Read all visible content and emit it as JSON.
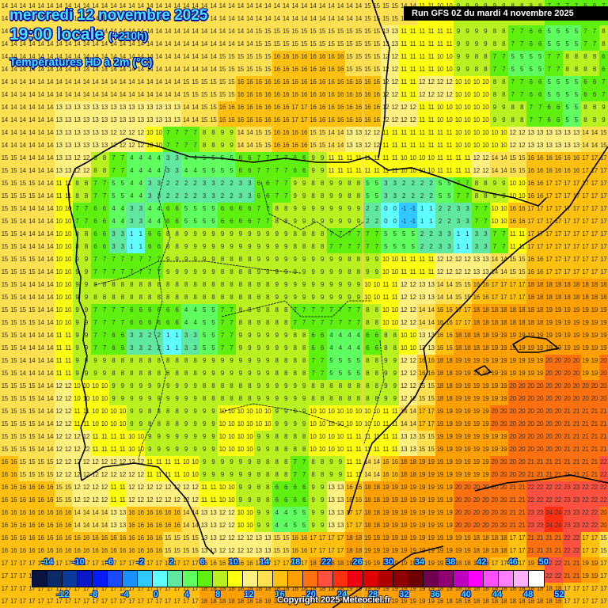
{
  "header": {
    "date": "mercredi 12 novembre 2025",
    "time": "19:00 locale",
    "lead": "(+210h)",
    "variable": "Températures HD à 2m (°C)",
    "run": "Run GFS 0Z du mardi 4 novembre 2025"
  },
  "footer": {
    "copyright": "Copyright 2025 Meteociel.fr"
  },
  "legend": {
    "colors": [
      "#0a1440",
      "#0a2a6a",
      "#0a3a9a",
      "#0a18c8",
      "#0a1aff",
      "#1a4aff",
      "#1a90ff",
      "#30c8ff",
      "#60ffff",
      "#60e8a0",
      "#60ff60",
      "#60f010",
      "#b8f020",
      "#ffff10",
      "#fff080",
      "#ffe050",
      "#ffc010",
      "#ffa000",
      "#ff7010",
      "#ff5040",
      "#ff3010",
      "#f00010",
      "#e00000",
      "#b00000",
      "#900000",
      "#700000",
      "#700050",
      "#900070",
      "#c000c0",
      "#ff00ff",
      "#ff50ff",
      "#ff80ff",
      "#ffb0ff",
      "#ffffff"
    ],
    "top_labels": [
      "-14",
      "-10",
      "-6",
      "-2",
      "2",
      "6",
      "10",
      "14",
      "18",
      "22",
      "26",
      "30",
      "34",
      "38",
      "42",
      "46",
      "50"
    ],
    "bottom_labels": [
      "-12",
      "-8",
      "-4",
      "0",
      "4",
      "8",
      "12",
      "16",
      "20",
      "24",
      "28",
      "32",
      "36",
      "40",
      "44",
      "48",
      "52"
    ],
    "min": -16,
    "step": 2
  },
  "grid": {
    "rows": 24,
    "cols": 34,
    "values": [
      [
        14,
        14,
        14,
        14,
        14,
        14,
        14,
        14,
        14,
        14,
        14,
        14,
        14,
        14,
        14,
        14,
        14,
        14,
        14,
        14,
        15,
        15,
        14,
        11,
        10,
        9,
        9,
        9,
        8,
        8,
        7,
        7,
        6,
        7
      ],
      [
        14,
        14,
        14,
        14,
        14,
        14,
        14,
        14,
        14,
        14,
        14,
        14,
        14,
        14,
        15,
        15,
        15,
        15,
        15,
        15,
        15,
        13,
        11,
        11,
        11,
        9,
        9,
        8,
        7,
        6,
        5,
        5,
        7,
        8
      ],
      [
        14,
        14,
        14,
        14,
        14,
        14,
        14,
        14,
        14,
        14,
        14,
        14,
        15,
        15,
        15,
        16,
        16,
        16,
        16,
        15,
        15,
        12,
        11,
        11,
        10,
        9,
        8,
        7,
        5,
        5,
        7,
        8,
        8,
        6
      ],
      [
        14,
        14,
        14,
        14,
        14,
        14,
        14,
        14,
        14,
        14,
        15,
        15,
        15,
        16,
        16,
        16,
        16,
        16,
        16,
        16,
        16,
        12,
        11,
        12,
        12,
        10,
        10,
        8,
        7,
        6,
        5,
        5,
        6,
        7
      ],
      [
        14,
        14,
        14,
        13,
        13,
        13,
        13,
        13,
        13,
        13,
        14,
        15,
        16,
        16,
        16,
        16,
        17,
        16,
        16,
        16,
        16,
        12,
        12,
        11,
        10,
        10,
        10,
        9,
        8,
        7,
        6,
        5,
        8,
        9
      ],
      [
        14,
        14,
        14,
        13,
        13,
        13,
        12,
        12,
        10,
        7,
        7,
        8,
        9,
        14,
        15,
        16,
        16,
        15,
        14,
        13,
        12,
        11,
        11,
        11,
        11,
        10,
        10,
        10,
        12,
        13,
        13,
        13,
        14,
        15
      ],
      [
        15,
        14,
        14,
        13,
        12,
        8,
        7,
        4,
        4,
        3,
        4,
        5,
        5,
        6,
        7,
        7,
        6,
        9,
        11,
        11,
        11,
        11,
        10,
        10,
        11,
        11,
        12,
        14,
        15,
        16,
        16,
        16,
        17,
        17
      ],
      [
        15,
        15,
        14,
        11,
        8,
        7,
        5,
        4,
        3,
        2,
        2,
        3,
        2,
        3,
        6,
        7,
        9,
        8,
        9,
        8,
        5,
        3,
        2,
        2,
        5,
        7,
        8,
        9,
        10,
        16,
        17,
        17,
        17,
        17
      ],
      [
        15,
        14,
        14,
        10,
        7,
        6,
        4,
        3,
        4,
        6,
        5,
        5,
        6,
        6,
        7,
        8,
        9,
        9,
        9,
        9,
        2,
        0,
        -1,
        1,
        2,
        3,
        7,
        10,
        16,
        17,
        17,
        17,
        17,
        17
      ],
      [
        15,
        14,
        14,
        10,
        8,
        6,
        3,
        1,
        6,
        8,
        9,
        9,
        9,
        9,
        9,
        9,
        8,
        8,
        7,
        7,
        7,
        5,
        5,
        2,
        3,
        1,
        3,
        7,
        11,
        17,
        17,
        17,
        17,
        17
      ],
      [
        15,
        15,
        14,
        10,
        9,
        7,
        7,
        7,
        7,
        9,
        9,
        9,
        8,
        8,
        9,
        9,
        9,
        9,
        9,
        8,
        9,
        10,
        11,
        11,
        12,
        12,
        13,
        14,
        15,
        16,
        17,
        17,
        17,
        17
      ],
      [
        15,
        14,
        14,
        10,
        9,
        8,
        8,
        8,
        8,
        8,
        8,
        8,
        8,
        8,
        8,
        9,
        9,
        9,
        9,
        9,
        10,
        11,
        12,
        13,
        14,
        15,
        16,
        17,
        17,
        18,
        18,
        18,
        18,
        18
      ],
      [
        15,
        15,
        14,
        10,
        9,
        7,
        7,
        6,
        6,
        6,
        4,
        5,
        7,
        8,
        8,
        8,
        7,
        7,
        7,
        7,
        8,
        10,
        12,
        14,
        16,
        17,
        18,
        18,
        18,
        18,
        19,
        19,
        19,
        19
      ],
      [
        15,
        14,
        14,
        11,
        9,
        7,
        6,
        3,
        2,
        1,
        3,
        5,
        7,
        9,
        9,
        9,
        8,
        6,
        4,
        4,
        6,
        8,
        10,
        13,
        16,
        18,
        18,
        19,
        19,
        19,
        19,
        19,
        19,
        19
      ],
      [
        15,
        14,
        14,
        11,
        9,
        9,
        8,
        8,
        8,
        8,
        8,
        9,
        9,
        9,
        9,
        8,
        8,
        7,
        5,
        5,
        8,
        9,
        12,
        16,
        18,
        19,
        19,
        19,
        19,
        19,
        20,
        20,
        19,
        20
      ],
      [
        15,
        15,
        14,
        12,
        10,
        10,
        9,
        9,
        9,
        9,
        9,
        8,
        8,
        8,
        9,
        9,
        9,
        8,
        8,
        8,
        8,
        9,
        12,
        15,
        18,
        19,
        19,
        19,
        20,
        20,
        20,
        20,
        20,
        20
      ],
      [
        15,
        15,
        14,
        12,
        11,
        10,
        10,
        9,
        8,
        8,
        9,
        9,
        10,
        10,
        10,
        9,
        9,
        10,
        10,
        10,
        10,
        11,
        14,
        17,
        19,
        19,
        19,
        20,
        20,
        20,
        20,
        21,
        21,
        21
      ],
      [
        15,
        15,
        14,
        12,
        12,
        11,
        11,
        10,
        9,
        9,
        9,
        9,
        10,
        10,
        9,
        8,
        8,
        10,
        10,
        11,
        11,
        11,
        13,
        15,
        19,
        19,
        19,
        19,
        20,
        20,
        20,
        21,
        21,
        21
      ],
      [
        16,
        15,
        15,
        12,
        12,
        12,
        12,
        12,
        11,
        11,
        10,
        9,
        9,
        9,
        8,
        8,
        7,
        8,
        9,
        11,
        14,
        16,
        18,
        19,
        19,
        19,
        19,
        20,
        20,
        21,
        21,
        21,
        21,
        22
      ],
      [
        16,
        16,
        16,
        15,
        12,
        12,
        11,
        12,
        12,
        12,
        12,
        11,
        10,
        9,
        8,
        6,
        6,
        9,
        13,
        16,
        18,
        19,
        19,
        19,
        19,
        20,
        20,
        20,
        21,
        22,
        22,
        23,
        22,
        22
      ],
      [
        16,
        16,
        16,
        16,
        14,
        14,
        13,
        16,
        16,
        16,
        14,
        13,
        12,
        10,
        9,
        4,
        5,
        9,
        13,
        17,
        18,
        19,
        19,
        19,
        19,
        20,
        20,
        20,
        21,
        23,
        24,
        23,
        22,
        20
      ],
      [
        16,
        16,
        16,
        16,
        16,
        16,
        16,
        16,
        16,
        15,
        15,
        13,
        12,
        12,
        13,
        15,
        16,
        17,
        17,
        18,
        19,
        19,
        19,
        19,
        19,
        19,
        18,
        18,
        17,
        21,
        21,
        22,
        17,
        15
      ],
      [
        17,
        17,
        17,
        17,
        17,
        17,
        17,
        17,
        17,
        17,
        17,
        16,
        16,
        16,
        17,
        17,
        17,
        18,
        18,
        18,
        19,
        19,
        19,
        19,
        19,
        18,
        18,
        17,
        17,
        19,
        22,
        21,
        19,
        17
      ],
      [
        17,
        17,
        17,
        17,
        17,
        17,
        17,
        17,
        17,
        17,
        17,
        18,
        18,
        18,
        18,
        18,
        18,
        18,
        18,
        19,
        19,
        19,
        19,
        19,
        18,
        18,
        18,
        18,
        18,
        18,
        18,
        17,
        17,
        17
      ]
    ]
  },
  "coastlines": [
    "M 103 607 L 100 585 L 108 565 L 102 540 L 110 520 L 108 500 L 103 480 L 110 450 L 105 430 L 108 400 L 100 380 L 102 350 L 96 330 L 98 300 L 88 260 L 86 235 L 95 213 L 110 205 L 130 192 L 160 175 L 200 185 L 240 198 L 280 200 L 320 205 L 360 200 L 400 205 L 440 205 L 465 198 L 490 215 L 520 212 L 560 225 L 600 240 L 650 250 L 680 260 L 690 250",
    "M 103 607 L 130 590 L 170 585 L 200 590 L 235 630 L 250 660 L 260 690 L 270 700",
    "M 440 650 L 455 600 L 470 560 L 500 530 L 525 500 L 540 470 L 535 440 L 560 410 L 590 380 L 620 345 L 660 310 L 690 290 L 720 260 L 745 220 L 768 185",
    "M 470 0 L 480 30 L 492 60 L 488 100 L 486 150 L 478 200",
    "M 600 620 L 640 610 L 690 605 L 720 600 L 768 610",
    "M 420 768 L 460 740 L 520 700 L 560 690",
    "M 648 435 L 665 425 L 690 428 L 705 440 L 680 445 L 655 445 Z",
    "M 600 468 L 612 462 L 620 470 L 608 474 Z"
  ],
  "borders": [
    "M 210 210 L 200 250 L 215 300 L 200 340 L 205 380 L 195 420 L 210 470 L 200 520 L 180 560 L 175 580",
    "M 120 360 L 160 350 L 200 330 L 260 330 L 330 340 L 380 345",
    "M 330 230 L 340 270 L 380 290 L 400 280 L 430 300 L 460 280",
    "M 280 400 L 320 390 L 360 380 L 380 400 L 420 400 L 440 380 L 470 380",
    "M 280 520 L 320 510 L 380 520 L 440 540",
    "M 480 430 L 485 480 L 470 530 L 460 560"
  ]
}
